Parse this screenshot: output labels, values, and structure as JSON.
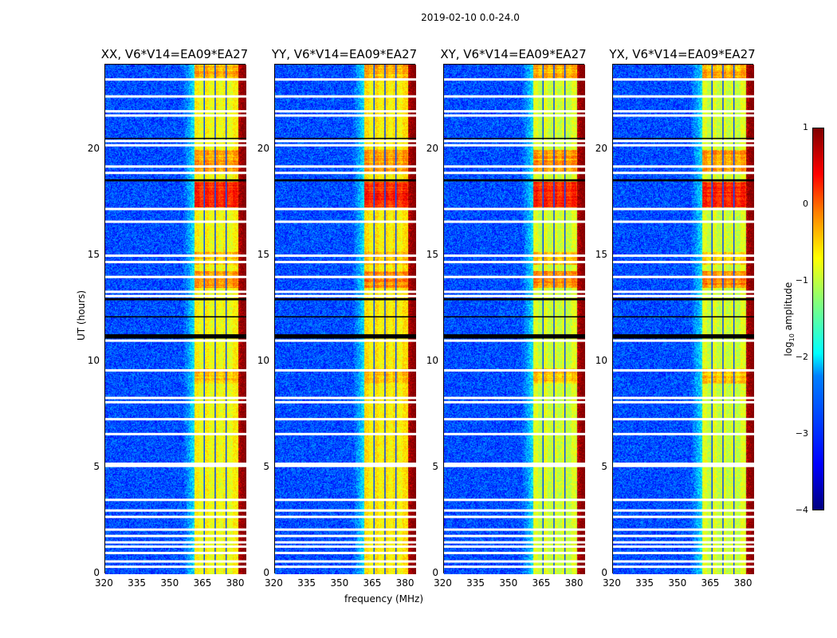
{
  "figure": {
    "suptitle": "2019-02-10 0.0-24.0"
  },
  "chart_data": {
    "type": "heatmap",
    "title": "2019-02-10 0.0-24.0",
    "xlabel": "frequency (MHz)",
    "ylabel": "UT (hours)",
    "xlim": [
      320,
      384.5
    ],
    "ylim": [
      0,
      24
    ],
    "xticks": [
      "320",
      "335",
      "350",
      "365",
      "380"
    ],
    "yticks": [
      "0",
      "5",
      "10",
      "15",
      "20"
    ],
    "panels": [
      {
        "title": "XX, V6*V14=EA09*EA27",
        "band_level": -0.8
      },
      {
        "title": "YY, V6*V14=EA09*EA27",
        "band_level": -0.7
      },
      {
        "title": "XY, V6*V14=EA09*EA27",
        "band_level": -1.0
      },
      {
        "title": "YX, V6*V14=EA09*EA27",
        "band_level": -1.0
      }
    ],
    "background_level": -3.0,
    "rfi_band_mhz": [
      360.7,
      380.5
    ],
    "band_gaps_mhz": [
      365,
      370,
      375
    ],
    "strong_rfi_hours": [
      [
        17.3,
        18.5,
        0.3
      ],
      [
        13.5,
        14.3,
        -0.2
      ],
      [
        19.0,
        20.0,
        -0.3
      ],
      [
        23.3,
        24.0,
        -0.4
      ],
      [
        9.0,
        9.7,
        -0.5
      ],
      [
        14.6,
        15.2,
        -0.5
      ]
    ],
    "flagged_hours": [
      0.35,
      0.6,
      1.0,
      1.3,
      1.5,
      1.8,
      2.1,
      2.7,
      3.0,
      3.5,
      5.1,
      5.2,
      6.6,
      7.3,
      8.1,
      8.3,
      9.6,
      11.0,
      13.1,
      13.3,
      14.0,
      14.7,
      15.0,
      16.6,
      17.2,
      18.9,
      19.2,
      20.2,
      20.4,
      21.6,
      21.8,
      22.5,
      23.3
    ],
    "zero_data_hours": [
      [
        11.1,
        11.3
      ],
      [
        12.1,
        12.15
      ],
      [
        12.9,
        13.0
      ],
      [
        18.5,
        18.6
      ],
      [
        20.5,
        20.55
      ]
    ],
    "colorbar": {
      "label": "log10 amplitude",
      "label_main": "log",
      "label_sub": "10",
      "label_rest": " amplitude",
      "ticks": [
        "1",
        "0",
        "−1",
        "−2",
        "−3",
        "−4"
      ],
      "range": [
        -4,
        1
      ],
      "colormap": "jet"
    }
  }
}
